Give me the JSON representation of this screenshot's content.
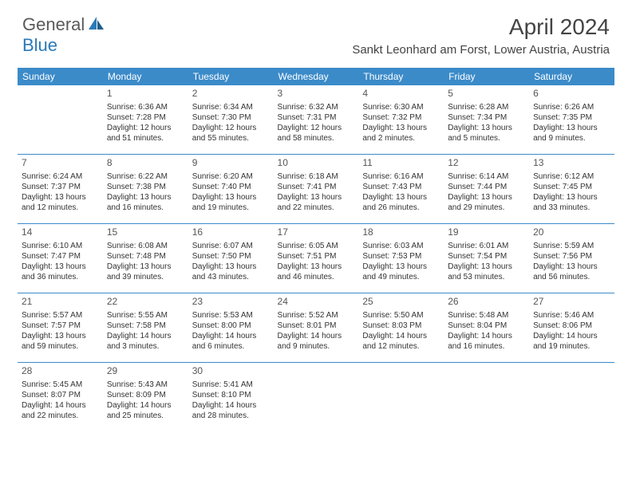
{
  "logo": {
    "text1": "General",
    "text2": "Blue"
  },
  "title": "April 2024",
  "location": "Sankt Leonhard am Forst, Lower Austria, Austria",
  "headers": [
    "Sunday",
    "Monday",
    "Tuesday",
    "Wednesday",
    "Thursday",
    "Friday",
    "Saturday"
  ],
  "colors": {
    "header_bg": "#3b8bc9",
    "header_fg": "#ffffff",
    "accent": "#2a7ab8",
    "text": "#333333",
    "daynum": "#555555",
    "sep": "#3b8bc9"
  },
  "weeks": [
    [
      null,
      {
        "n": "1",
        "sr": "6:36 AM",
        "ss": "7:28 PM",
        "dl": "12 hours and 51 minutes."
      },
      {
        "n": "2",
        "sr": "6:34 AM",
        "ss": "7:30 PM",
        "dl": "12 hours and 55 minutes."
      },
      {
        "n": "3",
        "sr": "6:32 AM",
        "ss": "7:31 PM",
        "dl": "12 hours and 58 minutes."
      },
      {
        "n": "4",
        "sr": "6:30 AM",
        "ss": "7:32 PM",
        "dl": "13 hours and 2 minutes."
      },
      {
        "n": "5",
        "sr": "6:28 AM",
        "ss": "7:34 PM",
        "dl": "13 hours and 5 minutes."
      },
      {
        "n": "6",
        "sr": "6:26 AM",
        "ss": "7:35 PM",
        "dl": "13 hours and 9 minutes."
      }
    ],
    [
      {
        "n": "7",
        "sr": "6:24 AM",
        "ss": "7:37 PM",
        "dl": "13 hours and 12 minutes."
      },
      {
        "n": "8",
        "sr": "6:22 AM",
        "ss": "7:38 PM",
        "dl": "13 hours and 16 minutes."
      },
      {
        "n": "9",
        "sr": "6:20 AM",
        "ss": "7:40 PM",
        "dl": "13 hours and 19 minutes."
      },
      {
        "n": "10",
        "sr": "6:18 AM",
        "ss": "7:41 PM",
        "dl": "13 hours and 22 minutes."
      },
      {
        "n": "11",
        "sr": "6:16 AM",
        "ss": "7:43 PM",
        "dl": "13 hours and 26 minutes."
      },
      {
        "n": "12",
        "sr": "6:14 AM",
        "ss": "7:44 PM",
        "dl": "13 hours and 29 minutes."
      },
      {
        "n": "13",
        "sr": "6:12 AM",
        "ss": "7:45 PM",
        "dl": "13 hours and 33 minutes."
      }
    ],
    [
      {
        "n": "14",
        "sr": "6:10 AM",
        "ss": "7:47 PM",
        "dl": "13 hours and 36 minutes."
      },
      {
        "n": "15",
        "sr": "6:08 AM",
        "ss": "7:48 PM",
        "dl": "13 hours and 39 minutes."
      },
      {
        "n": "16",
        "sr": "6:07 AM",
        "ss": "7:50 PM",
        "dl": "13 hours and 43 minutes."
      },
      {
        "n": "17",
        "sr": "6:05 AM",
        "ss": "7:51 PM",
        "dl": "13 hours and 46 minutes."
      },
      {
        "n": "18",
        "sr": "6:03 AM",
        "ss": "7:53 PM",
        "dl": "13 hours and 49 minutes."
      },
      {
        "n": "19",
        "sr": "6:01 AM",
        "ss": "7:54 PM",
        "dl": "13 hours and 53 minutes."
      },
      {
        "n": "20",
        "sr": "5:59 AM",
        "ss": "7:56 PM",
        "dl": "13 hours and 56 minutes."
      }
    ],
    [
      {
        "n": "21",
        "sr": "5:57 AM",
        "ss": "7:57 PM",
        "dl": "13 hours and 59 minutes."
      },
      {
        "n": "22",
        "sr": "5:55 AM",
        "ss": "7:58 PM",
        "dl": "14 hours and 3 minutes."
      },
      {
        "n": "23",
        "sr": "5:53 AM",
        "ss": "8:00 PM",
        "dl": "14 hours and 6 minutes."
      },
      {
        "n": "24",
        "sr": "5:52 AM",
        "ss": "8:01 PM",
        "dl": "14 hours and 9 minutes."
      },
      {
        "n": "25",
        "sr": "5:50 AM",
        "ss": "8:03 PM",
        "dl": "14 hours and 12 minutes."
      },
      {
        "n": "26",
        "sr": "5:48 AM",
        "ss": "8:04 PM",
        "dl": "14 hours and 16 minutes."
      },
      {
        "n": "27",
        "sr": "5:46 AM",
        "ss": "8:06 PM",
        "dl": "14 hours and 19 minutes."
      }
    ],
    [
      {
        "n": "28",
        "sr": "5:45 AM",
        "ss": "8:07 PM",
        "dl": "14 hours and 22 minutes."
      },
      {
        "n": "29",
        "sr": "5:43 AM",
        "ss": "8:09 PM",
        "dl": "14 hours and 25 minutes."
      },
      {
        "n": "30",
        "sr": "5:41 AM",
        "ss": "8:10 PM",
        "dl": "14 hours and 28 minutes."
      },
      null,
      null,
      null,
      null
    ]
  ],
  "labels": {
    "sunrise": "Sunrise: ",
    "sunset": "Sunset: ",
    "daylight": "Daylight: "
  }
}
